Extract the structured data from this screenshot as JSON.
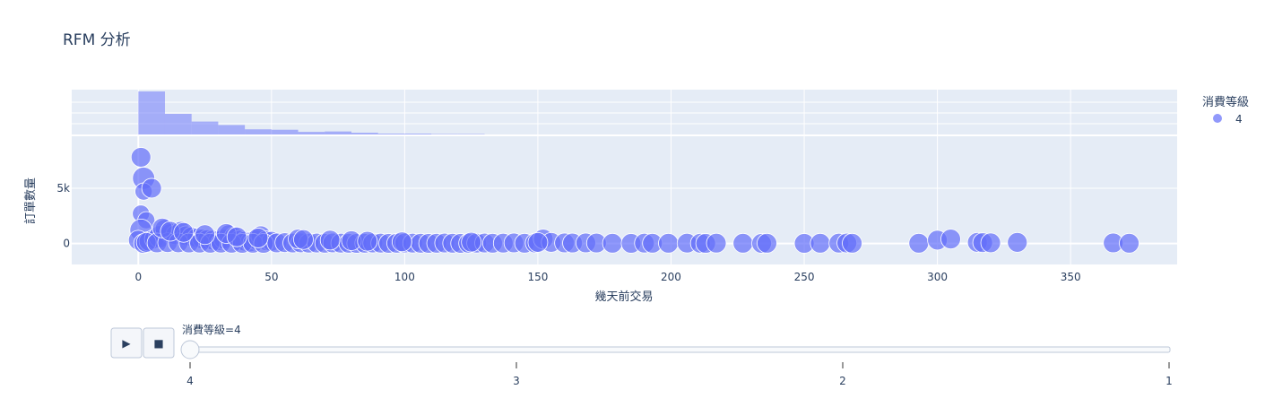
{
  "chart_data": {
    "type": "scatter",
    "title": "RFM 分析",
    "xlabel": "幾天前交易",
    "ylabel": "訂單數量",
    "xlim": [
      -25,
      390
    ],
    "ylim": [
      -1900,
      9700
    ],
    "x_ticks": [
      0,
      50,
      100,
      150,
      200,
      250,
      300,
      350
    ],
    "x_tick_labels": [
      "0",
      "50",
      "100",
      "150",
      "200",
      "250",
      "300",
      "350"
    ],
    "y_ticks": [
      0,
      5000
    ],
    "y_tick_labels": [
      "0",
      "5k"
    ],
    "legend": {
      "title": "消費等級",
      "position": "top-right",
      "items": [
        {
          "label": "4",
          "color": "#636efa"
        }
      ]
    },
    "marginal_histogram": {
      "bin_width": 10,
      "bin_starts": [
        0,
        10,
        20,
        30,
        40,
        50,
        60,
        70,
        80,
        90,
        100,
        110,
        120
      ],
      "counts": [
        100,
        48,
        30,
        22,
        12,
        11,
        6,
        7,
        4,
        2,
        2,
        1,
        1
      ]
    },
    "series": [
      {
        "name": "4",
        "color": "#636efa",
        "x": [
          1,
          2,
          2,
          1,
          3,
          5,
          1,
          0,
          2,
          4,
          6,
          8,
          10,
          12,
          14,
          16,
          18,
          20,
          22,
          24,
          26,
          28,
          30,
          32,
          34,
          36,
          38,
          40,
          42,
          44,
          46,
          48,
          50,
          3,
          7,
          11,
          15,
          19,
          23,
          27,
          31,
          35,
          39,
          43,
          47,
          52,
          55,
          58,
          61,
          64,
          67,
          70,
          73,
          76,
          79,
          82,
          85,
          88,
          91,
          94,
          97,
          100,
          103,
          106,
          109,
          112,
          115,
          118,
          121,
          124,
          127,
          130,
          133,
          137,
          141,
          145,
          149,
          152,
          155,
          160,
          163,
          168,
          172,
          178,
          185,
          190,
          193,
          199,
          206,
          211,
          213,
          217,
          227,
          234,
          236,
          250,
          256,
          263,
          266,
          268,
          293,
          300,
          305,
          315,
          317,
          320,
          330,
          366,
          372,
          9,
          12,
          17,
          25,
          33,
          37,
          45,
          60,
          62,
          72,
          80,
          86,
          99,
          125,
          150
        ],
        "y": [
          7800,
          5900,
          4700,
          2700,
          2100,
          5000,
          1200,
          300,
          0,
          200,
          400,
          600,
          1300,
          900,
          800,
          1100,
          700,
          600,
          500,
          400,
          350,
          300,
          250,
          400,
          800,
          600,
          300,
          200,
          150,
          350,
          700,
          250,
          200,
          100,
          50,
          80,
          60,
          40,
          30,
          20,
          30,
          20,
          10,
          20,
          10,
          50,
          80,
          40,
          60,
          30,
          40,
          20,
          50,
          30,
          20,
          10,
          20,
          40,
          30,
          10,
          20,
          40,
          30,
          20,
          10,
          20,
          40,
          20,
          10,
          20,
          30,
          40,
          20,
          30,
          50,
          20,
          40,
          400,
          100,
          50,
          40,
          50,
          40,
          20,
          10,
          30,
          20,
          20,
          30,
          20,
          10,
          30,
          20,
          10,
          20,
          10,
          20,
          30,
          40,
          20,
          20,
          300,
          400,
          100,
          80,
          60,
          100,
          50,
          20,
          1400,
          1100,
          1000,
          800,
          900,
          600,
          500,
          400,
          350,
          300,
          250,
          200,
          150,
          120,
          100
        ],
        "size": [
          9,
          10,
          8,
          8,
          8,
          9,
          10,
          9,
          9,
          9,
          9,
          10,
          9,
          9,
          9,
          9,
          9,
          9,
          9,
          9,
          9,
          9,
          9,
          9,
          9,
          9,
          9,
          9,
          9,
          9,
          9,
          9,
          9,
          9,
          9,
          9,
          9,
          9,
          9,
          9,
          9,
          9,
          9,
          9,
          9,
          9,
          9,
          9,
          9,
          9,
          9,
          9,
          9,
          9,
          9,
          9,
          9,
          9,
          9,
          9,
          9,
          9,
          9,
          9,
          9,
          9,
          9,
          9,
          9,
          9,
          9,
          9,
          9,
          9,
          9,
          9,
          9,
          9,
          9,
          9,
          9,
          9,
          9,
          9,
          9,
          9,
          9,
          9,
          9,
          9,
          9,
          9,
          9,
          9,
          9,
          9,
          9,
          9,
          9,
          9,
          9,
          9,
          9,
          9,
          9,
          9,
          9,
          9,
          9,
          9,
          9,
          9,
          9,
          9,
          9,
          9,
          9,
          9,
          9,
          9,
          9,
          9,
          9,
          9
        ]
      }
    ],
    "animation": {
      "slider_prefix": "消費等級=",
      "current": "4",
      "steps": [
        "4",
        "3",
        "2",
        "1"
      ],
      "play_symbol": "▶",
      "stop_symbol": "■"
    }
  }
}
